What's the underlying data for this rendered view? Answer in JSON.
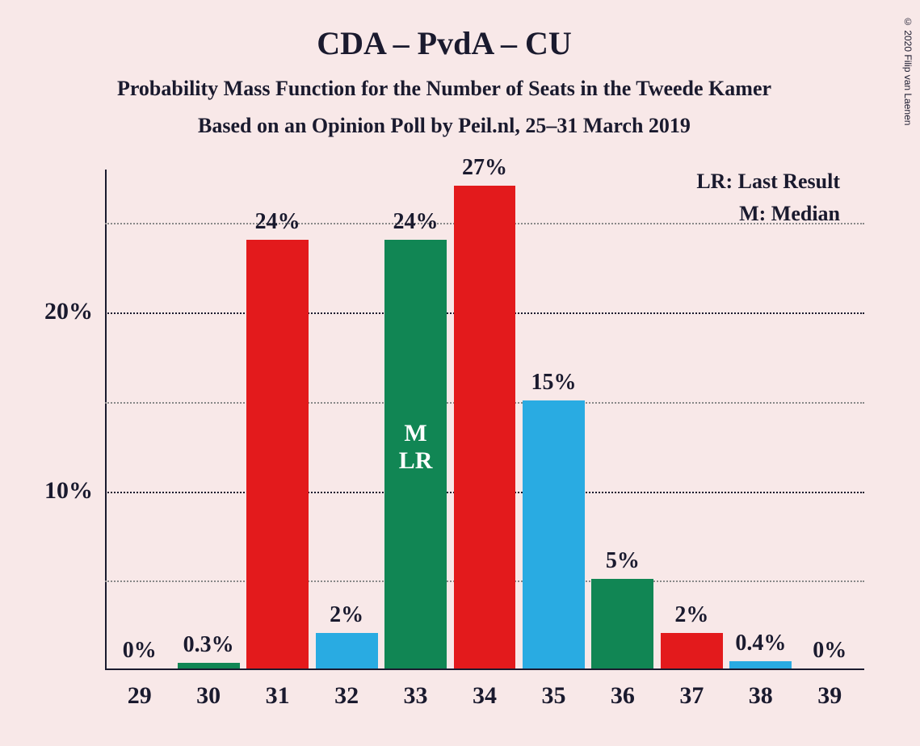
{
  "chart": {
    "type": "bar",
    "title": "CDA – PvdA – CU",
    "title_fontsize": 40,
    "subtitle1": "Probability Mass Function for the Number of Seats in the Tweede Kamer",
    "subtitle2": "Based on an Opinion Poll by Peil.nl, 25–31 March 2019",
    "subtitle_fontsize": 26,
    "background_color": "#f8e8e8",
    "text_color": "#1a1a2e",
    "categories": [
      "29",
      "30",
      "31",
      "32",
      "33",
      "34",
      "35",
      "36",
      "37",
      "38",
      "39"
    ],
    "values": [
      0,
      0.3,
      24,
      2,
      24,
      27,
      15,
      5,
      2,
      0.4,
      0
    ],
    "value_labels": [
      "0%",
      "0.3%",
      "24%",
      "2%",
      "24%",
      "27%",
      "15%",
      "5%",
      "2%",
      "0.4%",
      "0%"
    ],
    "bar_colors": [
      "#e31a1c",
      "#118654",
      "#e31a1c",
      "#29abe2",
      "#118654",
      "#e31a1c",
      "#29abe2",
      "#118654",
      "#e31a1c",
      "#29abe2",
      "#118654"
    ],
    "median_index": 4,
    "median_label_m": "M",
    "median_label_lr": "LR",
    "ylim": [
      0,
      28
    ],
    "y_major_ticks": [
      10,
      20
    ],
    "y_major_labels": [
      "10%",
      "20%"
    ],
    "y_minor_ticks": [
      5,
      15,
      25
    ],
    "grid_major_color": "#1a1a2e",
    "grid_minor_color": "#888888",
    "bar_width_ratio": 0.9,
    "value_label_fontsize": 28,
    "x_label_fontsize": 30,
    "y_label_fontsize": 30,
    "inner_label_fontsize": 30
  },
  "legend": {
    "lr": "LR: Last Result",
    "m": "M: Median",
    "fontsize": 26
  },
  "copyright": "© 2020 Filip van Laenen"
}
